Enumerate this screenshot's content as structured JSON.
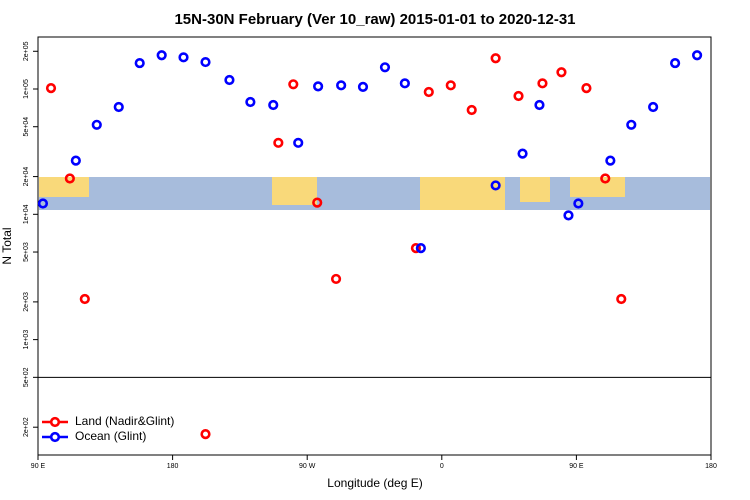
{
  "chart_data": {
    "type": "scatter",
    "title": "15N-30N February (Ver 10_raw)   2015-01-01 to 2020-12-31",
    "xlabel": "Longitude (deg E)",
    "ylabel": "N Total",
    "xlim": [
      90,
      540
    ],
    "xticks": [
      {
        "value": 90,
        "label": "90 E"
      },
      {
        "value": 180,
        "label": "180"
      },
      {
        "value": 270,
        "label": "90 W"
      },
      {
        "value": 360,
        "label": "0"
      },
      {
        "value": 450,
        "label": "90 E"
      },
      {
        "value": 540,
        "label": "180"
      }
    ],
    "ylim": [
      120,
      260000
    ],
    "log_y": true,
    "yticks": [
      {
        "value": 200000,
        "label": "2e+05"
      },
      {
        "value": 100000,
        "label": "1e+05"
      },
      {
        "value": 50000,
        "label": "5e+04"
      },
      {
        "value": 20000,
        "label": "2e+04"
      },
      {
        "value": 10000,
        "label": "1e+04"
      },
      {
        "value": 5000,
        "label": "5e+03"
      },
      {
        "value": 2000,
        "label": "2e+03"
      },
      {
        "value": 1000,
        "label": "1e+03"
      },
      {
        "value": 500,
        "label": "5e+02"
      },
      {
        "value": 200,
        "label": "2e+02"
      }
    ],
    "hline": 500,
    "legend": "lower left",
    "series": [
      {
        "name": "Land (Nadir&Glint)",
        "color": "#ff0000",
        "x": [
          98.7,
          111.3,
          121.3,
          202,
          250.7,
          260.7,
          276.7,
          289.3,
          342.7,
          351.3,
          366,
          380,
          396,
          411.3,
          427.3,
          440,
          456.7,
          469.3,
          480
        ],
        "values": [
          101600,
          19300,
          2110,
          176,
          37200,
          109000,
          12400,
          3050,
          5370,
          94600,
          107000,
          68000,
          176000,
          87900,
          111000,
          136000,
          101600,
          19300,
          2110
        ]
      },
      {
        "name": "Ocean (Glint)",
        "color": "#0000ff",
        "x": [
          93.3,
          115.3,
          129.3,
          144,
          158,
          172.7,
          187.3,
          202,
          218,
          232,
          247.3,
          264,
          277.3,
          292.7,
          307.3,
          322,
          335.3,
          346,
          396,
          414,
          425.3,
          444.7,
          451.3,
          472.7,
          486.7,
          501.3,
          516,
          530.7
        ],
        "values": [
          12200,
          26800,
          51800,
          71800,
          161000,
          186000,
          179000,
          164000,
          118000,
          78700,
          74500,
          37200,
          105000,
          107000,
          104000,
          149000,
          111000,
          5370,
          17000,
          30500,
          74500,
          9800,
          12200,
          26800,
          51800,
          71800,
          161000,
          186000
        ]
      }
    ]
  }
}
